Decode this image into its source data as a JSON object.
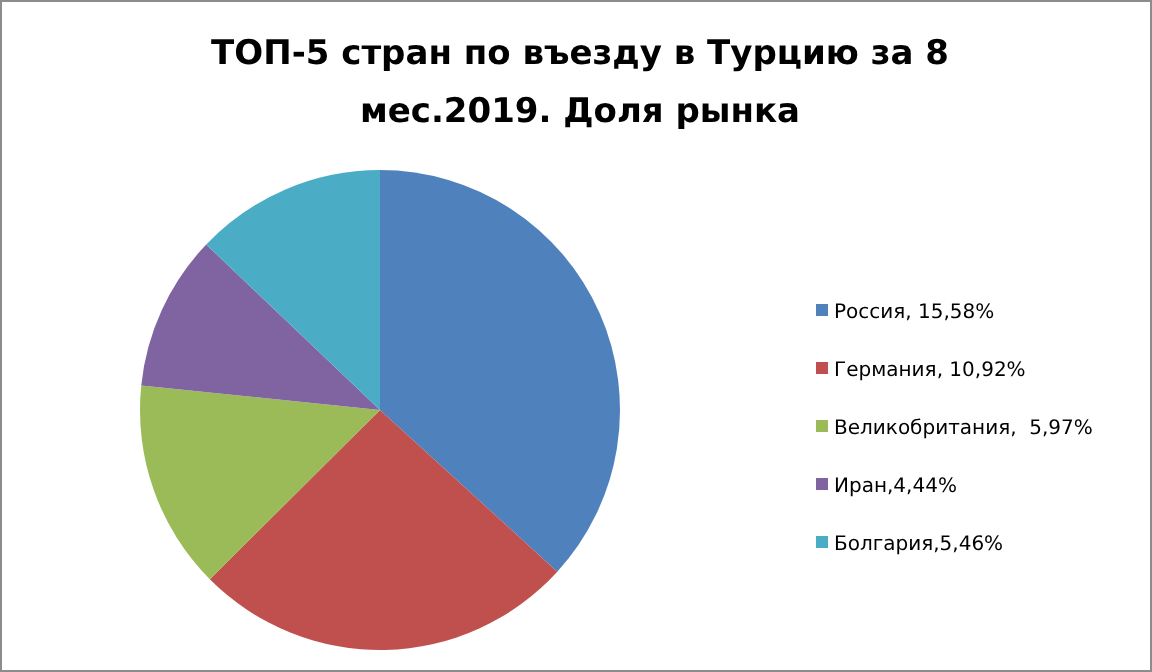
{
  "chart_data": {
    "type": "pie",
    "title": "ТОП-5 стран по въезду в Турцию за 8 мес.2019. Доля рынка",
    "categories": [
      "Россия, 15,58%",
      "Германия, 10,92%",
      "Великобритания,  5,97%",
      "Иран,4,44%",
      "Болгария,5,46%"
    ],
    "values": [
      15.58,
      10.92,
      5.97,
      4.44,
      5.46
    ],
    "colors": [
      "#4f81bd",
      "#c0504d",
      "#9bbb59",
      "#8064a2",
      "#4bacc6"
    ],
    "legend": "right"
  }
}
